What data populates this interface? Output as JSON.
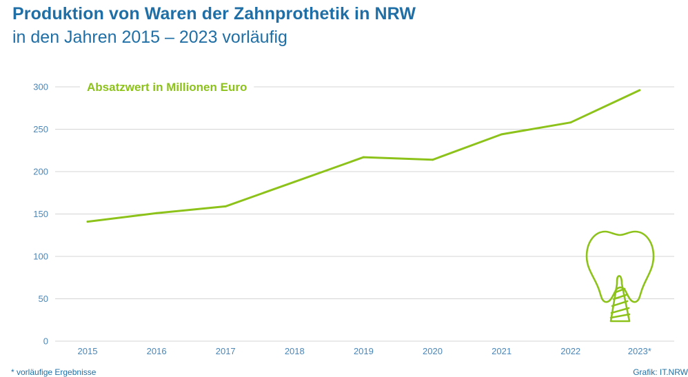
{
  "header": {
    "title": "Produktion von Waren der Zahnprothetik in NRW",
    "subtitle": "in den Jahren 2015 – 2023 vorläufig"
  },
  "footer": {
    "footnote": "*  vorläufige Ergebnisse",
    "source": "Grafik: IT.NRW"
  },
  "colors": {
    "line": "#8cc21a",
    "text": "#1f6fa6",
    "tick": "#4a86b8",
    "grid": "#d4d4d4"
  },
  "icons": {
    "decoration": "tooth-implant-icon"
  },
  "chart_data": {
    "type": "line",
    "categories": [
      "2015",
      "2016",
      "2017",
      "2018",
      "2019",
      "2020",
      "2021",
      "2022",
      "2023*"
    ],
    "series": [
      {
        "name": "Absatzwert in Millionen Euro",
        "values": [
          141,
          151,
          159,
          188,
          217,
          214,
          244,
          258,
          296
        ]
      }
    ],
    "yticks": [
      0,
      50,
      100,
      150,
      200,
      250,
      300
    ],
    "ylim": [
      0,
      300
    ],
    "grid": true,
    "legend": "top-left"
  }
}
